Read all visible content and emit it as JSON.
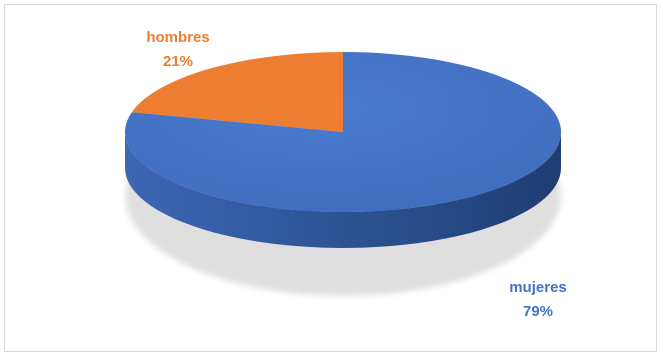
{
  "chart_data": {
    "type": "pie",
    "categories": [
      "mujeres",
      "hombres"
    ],
    "values": [
      79,
      21
    ],
    "percent_labels": [
      "79%",
      "21%"
    ],
    "colors": [
      "#4472C4",
      "#ED7D31"
    ],
    "title": "",
    "style": "3d",
    "legend": "none",
    "data_labels": "outside-end"
  }
}
